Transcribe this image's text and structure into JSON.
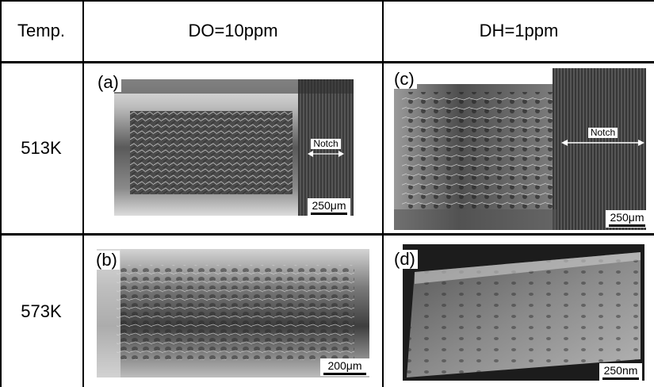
{
  "header": {
    "col0": "Temp.",
    "col1": "DO=10ppm",
    "col2": "DH=1ppm"
  },
  "rows": [
    {
      "temp": "513K"
    },
    {
      "temp": "573K"
    }
  ],
  "panels": {
    "a": {
      "label": "(a)",
      "scale": "250μm",
      "notch": "Notch"
    },
    "b": {
      "label": "(b)",
      "scale": "200μm"
    },
    "c": {
      "label": "(c)",
      "scale": "250μm",
      "notch": "Notch"
    },
    "d": {
      "label": "(d)",
      "scale": "250nm"
    }
  }
}
